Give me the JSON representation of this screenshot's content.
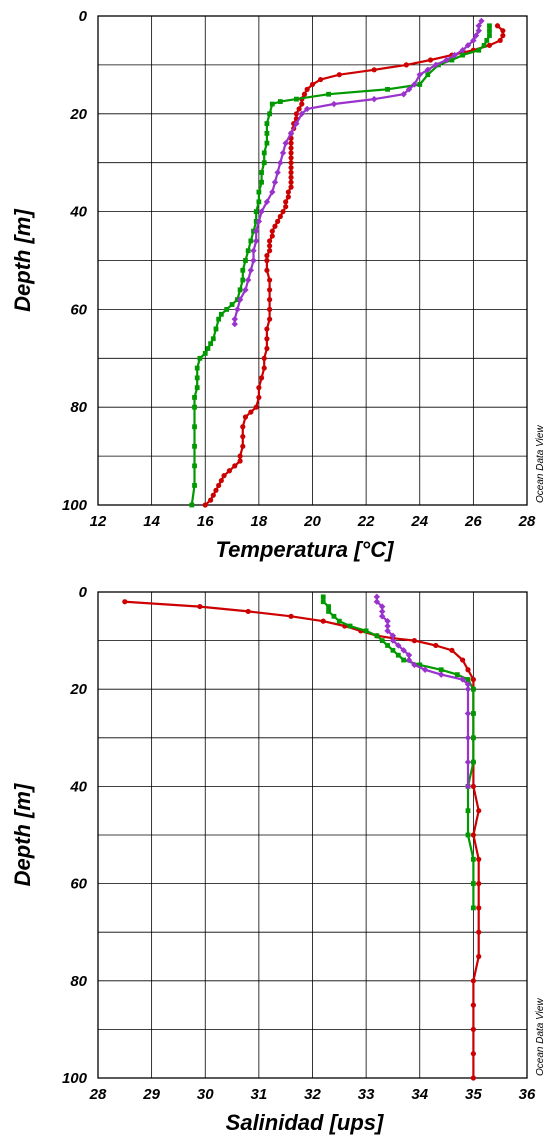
{
  "watermark": "Ocean Data View",
  "chart_data": [
    {
      "type": "line",
      "xlabel": "Temperatura [°C]",
      "ylabel": "Depth [m]",
      "xlim": [
        12,
        28
      ],
      "ylim": [
        0,
        100
      ],
      "y_inverted": true,
      "xticks": [
        "12",
        "14",
        "16",
        "18",
        "20",
        "22",
        "24",
        "26",
        "28"
      ],
      "yticks": [
        "0",
        "20",
        "40",
        "60",
        "80",
        "100"
      ],
      "grid": true,
      "series": [
        {
          "color": "#cc0000",
          "marker": "circle",
          "points": [
            [
              26.9,
              2
            ],
            [
              27.1,
              3
            ],
            [
              27.1,
              4
            ],
            [
              27.0,
              5
            ],
            [
              26.6,
              6
            ],
            [
              26.0,
              7
            ],
            [
              25.2,
              8
            ],
            [
              24.4,
              9
            ],
            [
              23.5,
              10
            ],
            [
              22.3,
              11
            ],
            [
              21.0,
              12
            ],
            [
              20.3,
              13
            ],
            [
              20.0,
              14
            ],
            [
              19.8,
              15
            ],
            [
              19.7,
              16
            ],
            [
              19.6,
              17
            ],
            [
              19.6,
              18
            ],
            [
              19.5,
              19
            ],
            [
              19.4,
              20
            ],
            [
              19.4,
              21
            ],
            [
              19.3,
              22
            ],
            [
              19.3,
              23
            ],
            [
              19.2,
              24
            ],
            [
              19.2,
              25
            ],
            [
              19.2,
              26
            ],
            [
              19.2,
              27
            ],
            [
              19.2,
              28
            ],
            [
              19.2,
              29
            ],
            [
              19.2,
              30
            ],
            [
              19.2,
              31
            ],
            [
              19.2,
              32
            ],
            [
              19.2,
              33
            ],
            [
              19.2,
              34
            ],
            [
              19.2,
              35
            ],
            [
              19.1,
              36
            ],
            [
              19.1,
              37
            ],
            [
              19.0,
              38
            ],
            [
              19.0,
              39
            ],
            [
              18.9,
              40
            ],
            [
              18.8,
              41
            ],
            [
              18.7,
              42
            ],
            [
              18.6,
              43
            ],
            [
              18.5,
              44
            ],
            [
              18.5,
              45
            ],
            [
              18.4,
              46
            ],
            [
              18.4,
              47
            ],
            [
              18.4,
              48
            ],
            [
              18.3,
              49
            ],
            [
              18.3,
              50
            ],
            [
              18.3,
              52
            ],
            [
              18.4,
              54
            ],
            [
              18.4,
              56
            ],
            [
              18.4,
              58
            ],
            [
              18.4,
              60
            ],
            [
              18.4,
              62
            ],
            [
              18.3,
              64
            ],
            [
              18.3,
              66
            ],
            [
              18.3,
              68
            ],
            [
              18.2,
              70
            ],
            [
              18.2,
              72
            ],
            [
              18.1,
              74
            ],
            [
              18.0,
              76
            ],
            [
              18.0,
              78
            ],
            [
              17.9,
              80
            ],
            [
              17.7,
              81
            ],
            [
              17.5,
              82
            ],
            [
              17.4,
              84
            ],
            [
              17.4,
              86
            ],
            [
              17.4,
              88
            ],
            [
              17.3,
              90
            ],
            [
              17.3,
              91
            ],
            [
              17.1,
              92
            ],
            [
              16.9,
              93
            ],
            [
              16.7,
              94
            ],
            [
              16.6,
              95
            ],
            [
              16.5,
              96
            ],
            [
              16.4,
              97
            ],
            [
              16.3,
              98
            ],
            [
              16.2,
              99
            ],
            [
              16.0,
              100
            ]
          ]
        },
        {
          "color": "#009900",
          "marker": "square",
          "points": [
            [
              26.6,
              2
            ],
            [
              26.6,
              3
            ],
            [
              26.6,
              4
            ],
            [
              26.5,
              5
            ],
            [
              26.4,
              6
            ],
            [
              26.2,
              7
            ],
            [
              25.6,
              8
            ],
            [
              25.2,
              9
            ],
            [
              24.7,
              10
            ],
            [
              24.3,
              12
            ],
            [
              24.0,
              14
            ],
            [
              22.8,
              15
            ],
            [
              20.6,
              16
            ],
            [
              19.4,
              17
            ],
            [
              18.8,
              17.5
            ],
            [
              18.5,
              18
            ],
            [
              18.4,
              20
            ],
            [
              18.3,
              22
            ],
            [
              18.3,
              24
            ],
            [
              18.3,
              26
            ],
            [
              18.2,
              28
            ],
            [
              18.2,
              30
            ],
            [
              18.1,
              32
            ],
            [
              18.1,
              34
            ],
            [
              18.0,
              36
            ],
            [
              18.0,
              38
            ],
            [
              17.9,
              40
            ],
            [
              17.9,
              42
            ],
            [
              17.8,
              44
            ],
            [
              17.7,
              46
            ],
            [
              17.6,
              48
            ],
            [
              17.5,
              50
            ],
            [
              17.4,
              52
            ],
            [
              17.4,
              54
            ],
            [
              17.3,
              56
            ],
            [
              17.2,
              58
            ],
            [
              17.0,
              59
            ],
            [
              16.8,
              60
            ],
            [
              16.6,
              61
            ],
            [
              16.5,
              62
            ],
            [
              16.4,
              64
            ],
            [
              16.3,
              66
            ],
            [
              16.2,
              67
            ],
            [
              16.1,
              68
            ],
            [
              16.0,
              69
            ],
            [
              15.8,
              70
            ],
            [
              15.7,
              72
            ],
            [
              15.7,
              74
            ],
            [
              15.7,
              76
            ],
            [
              15.6,
              78
            ],
            [
              15.6,
              80
            ],
            [
              15.6,
              84
            ],
            [
              15.6,
              88
            ],
            [
              15.6,
              92
            ],
            [
              15.6,
              96
            ],
            [
              15.5,
              100
            ]
          ]
        },
        {
          "color": "#9933cc",
          "marker": "diamond",
          "points": [
            [
              26.3,
              1
            ],
            [
              26.2,
              2
            ],
            [
              26.2,
              3
            ],
            [
              26.1,
              4
            ],
            [
              26.0,
              5
            ],
            [
              25.8,
              6
            ],
            [
              25.6,
              7
            ],
            [
              25.3,
              8
            ],
            [
              25.0,
              9
            ],
            [
              24.6,
              10
            ],
            [
              24.3,
              11
            ],
            [
              24.0,
              12
            ],
            [
              23.8,
              14
            ],
            [
              23.6,
              15
            ],
            [
              23.4,
              16
            ],
            [
              22.3,
              17
            ],
            [
              20.8,
              18
            ],
            [
              19.8,
              19
            ],
            [
              19.6,
              20
            ],
            [
              19.4,
              22
            ],
            [
              19.2,
              24
            ],
            [
              19.0,
              26
            ],
            [
              18.9,
              28
            ],
            [
              18.8,
              30
            ],
            [
              18.7,
              32
            ],
            [
              18.6,
              34
            ],
            [
              18.5,
              36
            ],
            [
              18.3,
              38
            ],
            [
              18.1,
              40
            ],
            [
              18.0,
              42
            ],
            [
              17.9,
              44
            ],
            [
              17.9,
              46
            ],
            [
              17.8,
              48
            ],
            [
              17.8,
              50
            ],
            [
              17.7,
              52
            ],
            [
              17.6,
              54
            ],
            [
              17.5,
              56
            ],
            [
              17.3,
              58
            ],
            [
              17.2,
              60
            ],
            [
              17.1,
              62
            ],
            [
              17.1,
              63
            ]
          ]
        }
      ]
    },
    {
      "type": "line",
      "xlabel": "Salinidad [ups]",
      "ylabel": "Depth [m]",
      "xlim": [
        28,
        36
      ],
      "ylim": [
        0,
        100
      ],
      "y_inverted": true,
      "xticks": [
        "28",
        "29",
        "30",
        "31",
        "32",
        "33",
        "34",
        "35",
        "36"
      ],
      "yticks": [
        "0",
        "20",
        "40",
        "60",
        "80",
        "100"
      ],
      "grid": true,
      "series": [
        {
          "color": "#cc0000",
          "marker": "circle",
          "points": [
            [
              28.5,
              2
            ],
            [
              29.9,
              3
            ],
            [
              30.8,
              4
            ],
            [
              31.6,
              5
            ],
            [
              32.2,
              6
            ],
            [
              32.6,
              7
            ],
            [
              32.9,
              8
            ],
            [
              33.2,
              9
            ],
            [
              33.5,
              9.5
            ],
            [
              33.9,
              10
            ],
            [
              34.3,
              11
            ],
            [
              34.6,
              12
            ],
            [
              34.8,
              14
            ],
            [
              34.9,
              16
            ],
            [
              35.0,
              18
            ],
            [
              35.0,
              20
            ],
            [
              35.0,
              25
            ],
            [
              35.0,
              30
            ],
            [
              35.0,
              35
            ],
            [
              35.0,
              40
            ],
            [
              35.1,
              45
            ],
            [
              35.0,
              50
            ],
            [
              35.1,
              55
            ],
            [
              35.1,
              60
            ],
            [
              35.1,
              65
            ],
            [
              35.1,
              70
            ],
            [
              35.1,
              75
            ],
            [
              35.0,
              80
            ],
            [
              35.0,
              85
            ],
            [
              35.0,
              90
            ],
            [
              35.0,
              95
            ],
            [
              35.0,
              100
            ]
          ]
        },
        {
          "color": "#009900",
          "marker": "square",
          "points": [
            [
              32.2,
              1
            ],
            [
              32.2,
              2
            ],
            [
              32.3,
              3
            ],
            [
              32.3,
              4
            ],
            [
              32.4,
              5
            ],
            [
              32.5,
              6
            ],
            [
              32.7,
              7
            ],
            [
              33.0,
              8
            ],
            [
              33.2,
              9
            ],
            [
              33.3,
              10
            ],
            [
              33.4,
              11
            ],
            [
              33.5,
              12
            ],
            [
              33.6,
              13
            ],
            [
              33.7,
              14
            ],
            [
              34.0,
              15
            ],
            [
              34.4,
              16
            ],
            [
              34.7,
              17
            ],
            [
              34.9,
              18
            ],
            [
              35.0,
              20
            ],
            [
              35.0,
              25
            ],
            [
              35.0,
              30
            ],
            [
              35.0,
              35
            ],
            [
              34.9,
              40
            ],
            [
              34.9,
              45
            ],
            [
              34.9,
              50
            ],
            [
              35.0,
              55
            ],
            [
              35.0,
              60
            ],
            [
              35.0,
              65
            ]
          ]
        },
        {
          "color": "#9933cc",
          "marker": "diamond",
          "points": [
            [
              33.2,
              1
            ],
            [
              33.2,
              2
            ],
            [
              33.3,
              3
            ],
            [
              33.3,
              4
            ],
            [
              33.3,
              5
            ],
            [
              33.4,
              6
            ],
            [
              33.4,
              7
            ],
            [
              33.4,
              8
            ],
            [
              33.5,
              9
            ],
            [
              33.5,
              10
            ],
            [
              33.6,
              11
            ],
            [
              33.7,
              12
            ],
            [
              33.8,
              13
            ],
            [
              33.8,
              14
            ],
            [
              33.9,
              15
            ],
            [
              34.1,
              16
            ],
            [
              34.4,
              17
            ],
            [
              34.8,
              18
            ],
            [
              34.9,
              19
            ],
            [
              34.9,
              20
            ],
            [
              34.9,
              25
            ],
            [
              34.9,
              30
            ],
            [
              34.9,
              35
            ],
            [
              34.9,
              40
            ]
          ]
        }
      ]
    }
  ]
}
